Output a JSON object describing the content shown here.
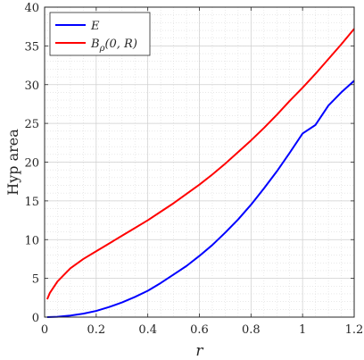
{
  "chart_data": {
    "type": "line",
    "xlabel": "r",
    "ylabel": "Hyp area",
    "xlim": [
      0,
      1.2
    ],
    "ylim": [
      0,
      40
    ],
    "xticks": [
      "0",
      "0.2",
      "0.4",
      "0.6",
      "0.8",
      "1",
      "1.2"
    ],
    "yticks": [
      "0",
      "5",
      "10",
      "15",
      "20",
      "25",
      "30",
      "35",
      "40"
    ],
    "grid": true,
    "minor_grid": true,
    "legend_position": "top-left",
    "series": [
      {
        "name": "E",
        "color": "#0000ff",
        "x": [
          0.01,
          0.05,
          0.1,
          0.15,
          0.2,
          0.25,
          0.3,
          0.35,
          0.4,
          0.45,
          0.5,
          0.55,
          0.6,
          0.65,
          0.7,
          0.75,
          0.8,
          0.85,
          0.9,
          0.95,
          1.0,
          1.05,
          1.1,
          1.15,
          1.2
        ],
        "y": [
          0.0,
          0.05,
          0.2,
          0.45,
          0.8,
          1.3,
          1.9,
          2.6,
          3.4,
          4.4,
          5.5,
          6.6,
          7.9,
          9.3,
          10.9,
          12.6,
          14.5,
          16.6,
          18.8,
          21.2,
          23.7,
          24.8,
          27.3,
          29.0,
          30.5
        ]
      },
      {
        "name": "B_ρ(0, R)",
        "color": "#ff0000",
        "x": [
          0.01,
          0.02,
          0.05,
          0.1,
          0.15,
          0.2,
          0.25,
          0.3,
          0.35,
          0.4,
          0.45,
          0.5,
          0.55,
          0.6,
          0.65,
          0.7,
          0.75,
          0.8,
          0.85,
          0.9,
          0.95,
          1.0,
          1.05,
          1.1,
          1.15,
          1.2
        ],
        "y": [
          2.3,
          3.1,
          4.6,
          6.3,
          7.5,
          8.5,
          9.5,
          10.5,
          11.5,
          12.5,
          13.6,
          14.7,
          15.9,
          17.1,
          18.4,
          19.8,
          21.3,
          22.8,
          24.4,
          26.1,
          27.9,
          29.6,
          31.4,
          33.3,
          35.2,
          37.2
        ]
      }
    ]
  }
}
